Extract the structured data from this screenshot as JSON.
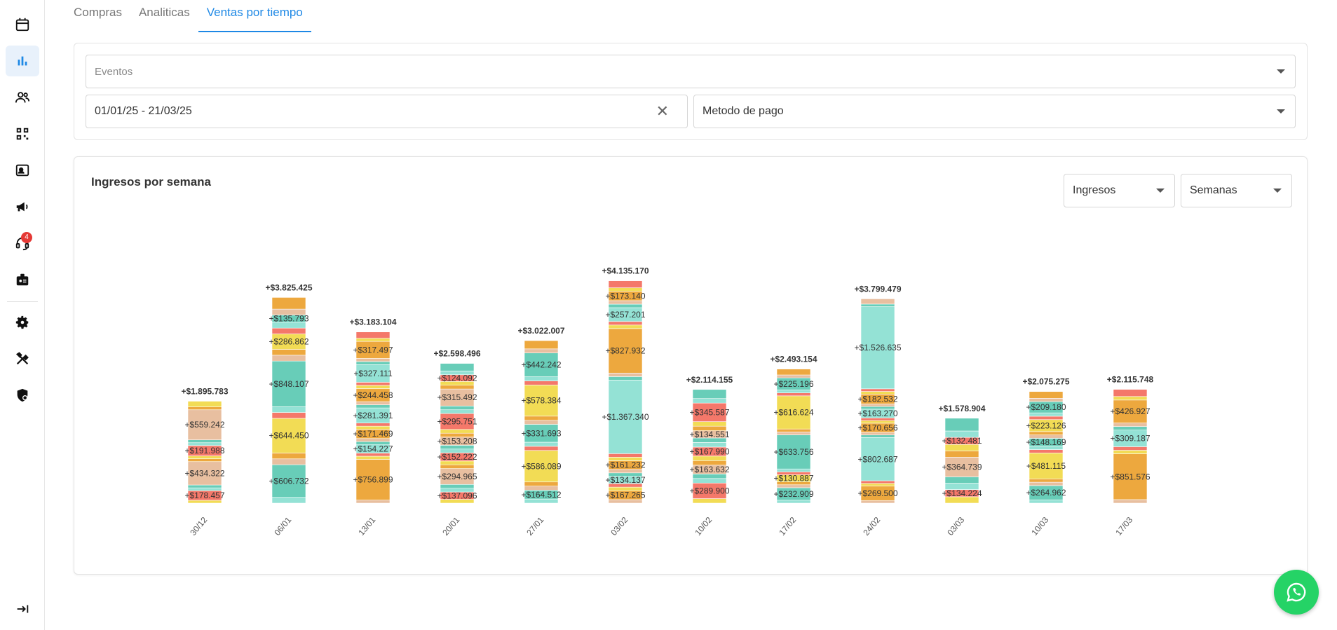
{
  "sidebar": {
    "items": [
      {
        "name": "calendar-icon"
      },
      {
        "name": "bar-chart-icon",
        "active": true
      },
      {
        "name": "users-icon"
      },
      {
        "name": "qr-code-icon"
      },
      {
        "name": "contact-card-icon"
      },
      {
        "name": "megaphone-icon"
      },
      {
        "name": "support-agent-icon",
        "badge": "4"
      },
      {
        "name": "badge-icon"
      },
      {
        "name": "gear-icon"
      },
      {
        "name": "tools-icon"
      },
      {
        "name": "admin-shield-icon"
      }
    ],
    "collapse_icon": "collapse-icon"
  },
  "tabs": [
    {
      "label": "Compras",
      "active": false
    },
    {
      "label": "Analiticas",
      "active": false
    },
    {
      "label": "Ventas por tiempo",
      "active": true
    }
  ],
  "filters": {
    "events_placeholder": "Eventos",
    "date_range": "01/01/25 - 21/03/25",
    "payment_method": "Metodo de pago"
  },
  "chart_panel": {
    "title": "Ingresos por semana",
    "metric_select": "Ingresos",
    "period_select": "Semanas"
  },
  "colors": {
    "accent": "#1e88e5",
    "whatsapp": "#25d366",
    "palette": [
      "#f2dc55",
      "#f4786a",
      "#94e2d5",
      "#68cdb8",
      "#e8bfa0",
      "#eda83e"
    ]
  },
  "chart_data": {
    "type": "bar",
    "stacked": true,
    "title": "Ingresos por semana",
    "categories": [
      "30/12",
      "06/01",
      "13/01",
      "20/01",
      "27/01",
      "03/02",
      "10/02",
      "17/02",
      "24/02",
      "03/03",
      "10/03",
      "17/03"
    ],
    "totals": [
      1895783,
      3825425,
      3183104,
      2598496,
      3022007,
      4135170,
      2114155,
      2493154,
      3799479,
      1578904,
      2075275,
      2115748
    ],
    "total_labels": [
      "+$1.895.783",
      "+$3.825.425",
      "+$3.183.104",
      "+$2.598.496",
      "+$3.022.007",
      "+$4.135.170",
      "+$2.114.155",
      "+$2.493.154",
      "+$3.799.479",
      "+$1.578.904",
      "+$2.075.275",
      "+$2.115.748"
    ],
    "ylim": [
      0,
      4300000
    ],
    "segments": [
      [
        {
          "v": 178457,
          "l": "+$178.457"
        },
        {
          "v": 434322,
          "l": "+$434.322"
        },
        {
          "v": 191988,
          "l": "+$191.988"
        },
        {
          "v": 559242,
          "l": "+$559.242"
        }
      ],
      [
        {
          "v": 606732,
          "l": "+$606.732"
        },
        {
          "v": 644450,
          "l": "+$644.450"
        },
        {
          "v": 848107,
          "l": "+$848.107"
        },
        {
          "v": 286862,
          "l": "+$286.862"
        },
        {
          "v": 135793,
          "l": "+$135.793"
        }
      ],
      [
        {
          "v": 756899,
          "l": "+$756.899"
        },
        {
          "v": 154227,
          "l": "+$154.227"
        },
        {
          "v": 171469,
          "l": "+$171.469"
        },
        {
          "v": 281391,
          "l": "+$281.391"
        },
        {
          "v": 244458,
          "l": "+$244.458"
        },
        {
          "v": 327111,
          "l": "+$327.111"
        },
        {
          "v": 317497,
          "l": "+$317.497"
        }
      ],
      [
        {
          "v": 137096,
          "l": "+$137.096"
        },
        {
          "v": 294965,
          "l": "+$294.965"
        },
        {
          "v": 152222,
          "l": "+$152.222"
        },
        {
          "v": 153208,
          "l": "+$153.208"
        },
        {
          "v": 295751,
          "l": "+$295.751"
        },
        {
          "v": 315492,
          "l": "+$315.492"
        },
        {
          "v": 124092,
          "l": "+$124.092"
        }
      ],
      [
        {
          "v": 164512,
          "l": "+$164.512"
        },
        {
          "v": 586089,
          "l": "+$586.089"
        },
        {
          "v": 331693,
          "l": "+$331.693"
        },
        {
          "v": 578384,
          "l": "+$578.384"
        },
        {
          "v": 442242,
          "l": "+$442.242"
        }
      ],
      [
        {
          "v": 167265,
          "l": "+$167.265"
        },
        {
          "v": 134137,
          "l": "+$134.137"
        },
        {
          "v": 161232,
          "l": "+$161.232"
        },
        {
          "v": 1367340,
          "l": "+$1.367.340"
        },
        {
          "v": 827932,
          "l": "+$827.932"
        },
        {
          "v": 257201,
          "l": "+$257.201"
        },
        {
          "v": 173140,
          "l": "+$173.140"
        }
      ],
      [
        {
          "v": 289900,
          "l": "+$289.900"
        },
        {
          "v": 163632,
          "l": "+$163.632"
        },
        {
          "v": 167990,
          "l": "+$167.990"
        },
        {
          "v": 134551,
          "l": "+$134.551"
        },
        {
          "v": 345587,
          "l": "+$345.587"
        }
      ],
      [
        {
          "v": 232909,
          "l": "+$232.909"
        },
        {
          "v": 130887,
          "l": "+$130.887"
        },
        {
          "v": 633756,
          "l": "+$633.756"
        },
        {
          "v": 616624,
          "l": "+$616.624"
        },
        {
          "v": 225196,
          "l": "+$225.196"
        }
      ],
      [
        {
          "v": 269500,
          "l": "+$269.500"
        },
        {
          "v": 802687,
          "l": "+$802.687"
        },
        {
          "v": 170656,
          "l": "+$170.656"
        },
        {
          "v": 163270,
          "l": "+$163.270"
        },
        {
          "v": 182532,
          "l": "+$182.532"
        },
        {
          "v": 1526635,
          "l": "+$1.526.635"
        }
      ],
      [
        {
          "v": 134224,
          "l": "+$134.224"
        },
        {
          "v": 364739,
          "l": "+$364.739"
        },
        {
          "v": 132481,
          "l": "+$132.481"
        }
      ],
      [
        {
          "v": 264962,
          "l": "+$264.962"
        },
        {
          "v": 481115,
          "l": "+$481.115"
        },
        {
          "v": 148169,
          "l": "+$148.169"
        },
        {
          "v": 223126,
          "l": "+$223.126"
        },
        {
          "v": 209180,
          "l": "+$209.180"
        }
      ],
      [
        {
          "v": 851576,
          "l": "+$851.576"
        },
        {
          "v": 309187,
          "l": "+$309.187"
        },
        {
          "v": 426927,
          "l": "+$426.927"
        }
      ]
    ]
  }
}
